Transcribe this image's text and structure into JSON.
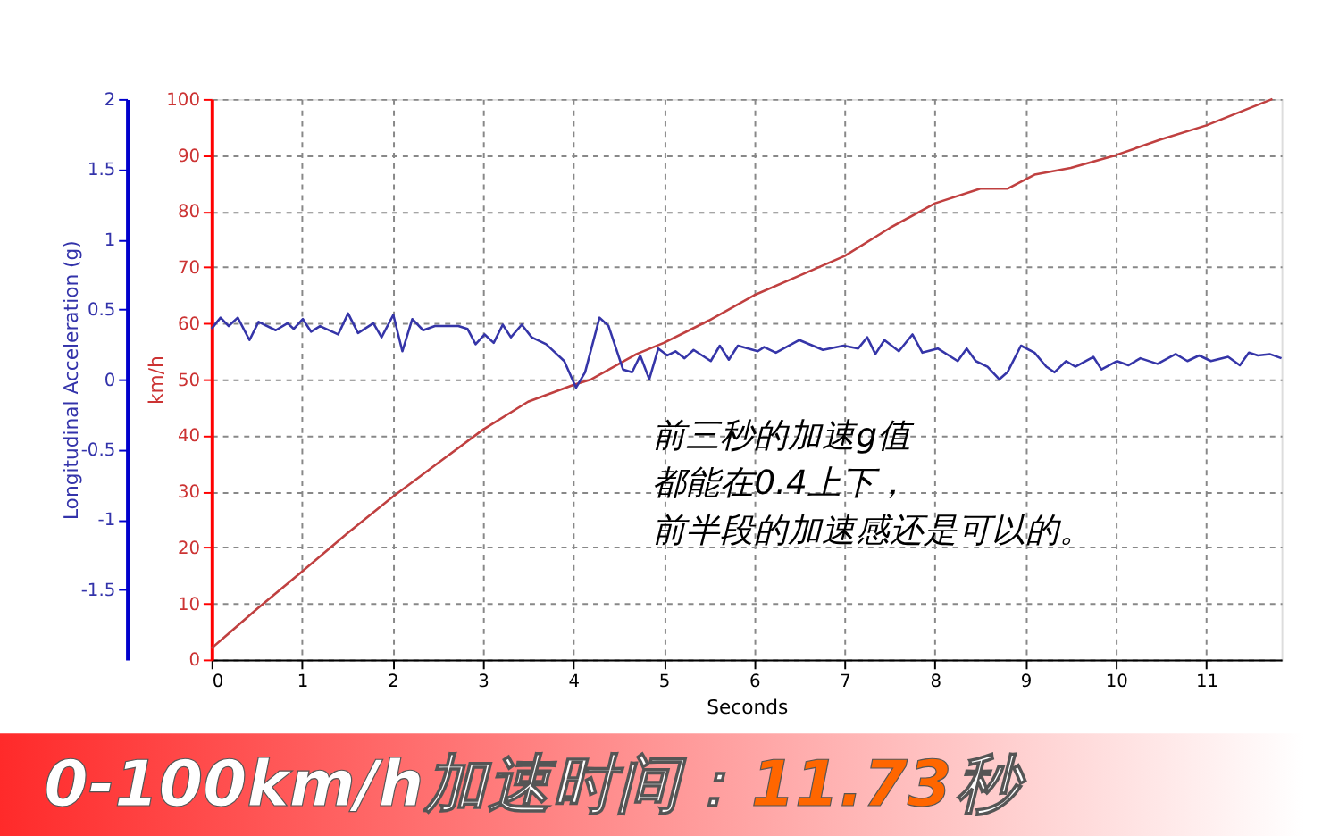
{
  "chart_data": {
    "type": "line",
    "xlabel": "Seconds",
    "ylabel": "km/h",
    "y2label": "Longitudinal Acceleration (g)",
    "xlim": [
      0,
      11.83
    ],
    "xticks": [
      0,
      1,
      2,
      3,
      4,
      5,
      6,
      7,
      8,
      9,
      10,
      11
    ],
    "ylim": [
      0,
      100
    ],
    "yticks": [
      0,
      10,
      20,
      30,
      40,
      50,
      60,
      70,
      80,
      90,
      100
    ],
    "y2lim": [
      -2,
      2
    ],
    "y2ticks": [
      -1.5,
      -1,
      -0.5,
      0,
      0.5,
      1,
      1.5,
      2
    ],
    "grid": true,
    "line_style": "solid",
    "marker": "none",
    "series": [
      {
        "type": "line",
        "color": "#c04040",
        "x": [
          0,
          0.5,
          1,
          1.5,
          2,
          2.5,
          3,
          3.5,
          4,
          4.2,
          4.7,
          5,
          5.5,
          6,
          6.5,
          7,
          7.5,
          8,
          8.5,
          8.8,
          9.1,
          9.5,
          10,
          10.5,
          11,
          11.73
        ],
        "values": [
          2,
          9,
          15.7,
          22.5,
          29,
          35,
          41,
          46,
          49,
          50,
          54.5,
          56.5,
          60.5,
          65,
          68.5,
          72,
          77,
          81.4,
          84,
          84,
          86.5,
          87.7,
          90,
          92.8,
          95.3,
          100
        ]
      },
      {
        "type": "line",
        "color": "#3535a8",
        "axis": "y2",
        "x": [
          0,
          0.1,
          0.19,
          0.29,
          0.42,
          0.52,
          0.71,
          0.84,
          0.91,
          1.01,
          1.1,
          1.2,
          1.4,
          1.51,
          1.62,
          1.79,
          1.88,
          2.01,
          2.11,
          2.22,
          2.34,
          2.47,
          2.73,
          2.83,
          2.92,
          3.02,
          3.12,
          3.22,
          3.31,
          3.43,
          3.54,
          3.7,
          3.9,
          4.03,
          4.13,
          4.29,
          4.39,
          4.55,
          4.65,
          4.74,
          4.84,
          4.94,
          5.04,
          5.13,
          5.23,
          5.33,
          5.52,
          5.62,
          5.72,
          5.82,
          6.04,
          6.11,
          6.24,
          6.5,
          6.76,
          6.99,
          7.15,
          7.25,
          7.34,
          7.44,
          7.6,
          7.75,
          7.86,
          8.03,
          8.25,
          8.35,
          8.45,
          8.58,
          8.71,
          8.8,
          8.95,
          9.1,
          9.23,
          9.32,
          9.45,
          9.55,
          9.75,
          9.84,
          10.01,
          10.14,
          10.27,
          10.46,
          10.66,
          10.79,
          10.92,
          11.05,
          11.24,
          11.37,
          11.47,
          11.57,
          11.7,
          11.83
        ],
        "values": [
          0.36,
          0.44,
          0.38,
          0.44,
          0.28,
          0.41,
          0.35,
          0.4,
          0.36,
          0.43,
          0.34,
          0.38,
          0.32,
          0.47,
          0.33,
          0.4,
          0.3,
          0.46,
          0.2,
          0.43,
          0.35,
          0.38,
          0.38,
          0.36,
          0.25,
          0.32,
          0.26,
          0.39,
          0.3,
          0.39,
          0.3,
          0.25,
          0.13,
          -0.06,
          0.05,
          0.44,
          0.38,
          0.07,
          0.05,
          0.17,
          0.0,
          0.22,
          0.17,
          0.2,
          0.15,
          0.21,
          0.13,
          0.24,
          0.14,
          0.24,
          0.2,
          0.23,
          0.19,
          0.28,
          0.21,
          0.24,
          0.22,
          0.3,
          0.18,
          0.28,
          0.2,
          0.32,
          0.19,
          0.22,
          0.13,
          0.22,
          0.13,
          0.09,
          0.0,
          0.05,
          0.24,
          0.19,
          0.09,
          0.05,
          0.13,
          0.09,
          0.16,
          0.07,
          0.13,
          0.1,
          0.15,
          0.11,
          0.18,
          0.13,
          0.17,
          0.13,
          0.16,
          0.1,
          0.19,
          0.17,
          0.18,
          0.15
        ]
      }
    ],
    "annotations": [
      "前三秒的加速g值",
      "都能在0.4上下，",
      "前半段的加速感还是可以的。",
      "0-100km/h加速时间：",
      "11.73",
      "秒"
    ]
  }
}
